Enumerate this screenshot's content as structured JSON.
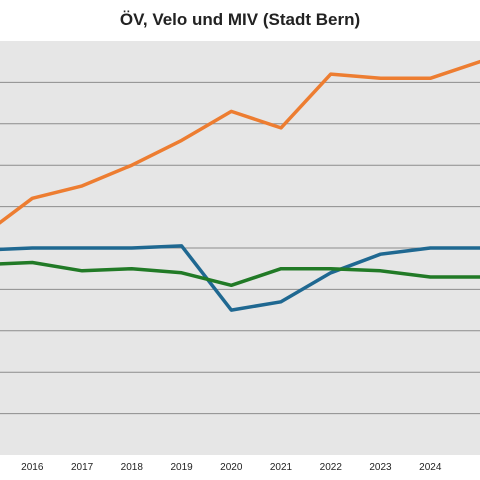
{
  "chart_data": {
    "type": "line",
    "title": "ÖV, Velo und MIV (Stadt Bern)",
    "xlabel": "",
    "ylabel": "",
    "x": [
      2015,
      2016,
      2017,
      2018,
      2019,
      2020,
      2021,
      2022,
      2023,
      2024,
      2025
    ],
    "x_tick_labels": [
      "2016",
      "2017",
      "2018",
      "2019",
      "2020",
      "2021",
      "2022",
      "2023",
      "2024"
    ],
    "xlim": [
      2015.35,
      2025.0
    ],
    "ylim": [
      0,
      10
    ],
    "grid": true,
    "series": [
      {
        "color": "#ED7D31",
        "values": [
          5.3,
          6.2,
          6.5,
          7.0,
          7.6,
          8.3,
          7.9,
          9.2,
          9.1,
          9.1,
          9.5
        ]
      },
      {
        "color": "#1F6891",
        "values": [
          4.95,
          5.0,
          5.0,
          5.0,
          5.05,
          3.5,
          3.7,
          4.4,
          4.85,
          5.0,
          5.0
        ]
      },
      {
        "color": "#217A26",
        "values": [
          4.6,
          4.65,
          4.45,
          4.5,
          4.4,
          4.1,
          4.5,
          4.5,
          4.45,
          4.3,
          4.3
        ]
      }
    ]
  },
  "colors": {
    "plot_bg": "#E6E6E6",
    "grid": "#8C8C8C"
  }
}
